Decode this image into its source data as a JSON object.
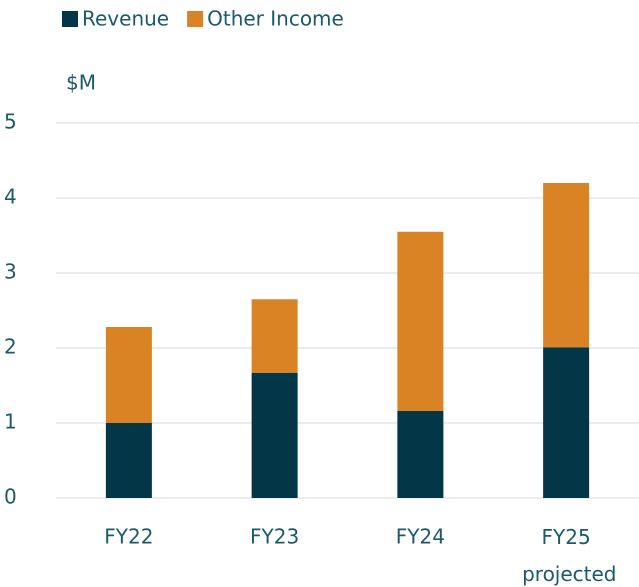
{
  "chart_data": {
    "type": "stacked_bar",
    "y_label": "$M",
    "categories": [
      "FY22",
      "FY23",
      "FY24",
      "FY25 projected"
    ],
    "series": [
      {
        "name": "Revenue",
        "color": "#033646",
        "values": [
          1.0,
          1.67,
          1.16,
          2.01
        ]
      },
      {
        "name": "Other Income",
        "color": "#d98324",
        "values": [
          1.28,
          0.98,
          2.39,
          2.19
        ]
      }
    ],
    "ylim": [
      0,
      5
    ],
    "yticks": [
      0,
      1,
      2,
      3,
      4,
      5
    ],
    "grid": true,
    "legend": "top-left"
  }
}
